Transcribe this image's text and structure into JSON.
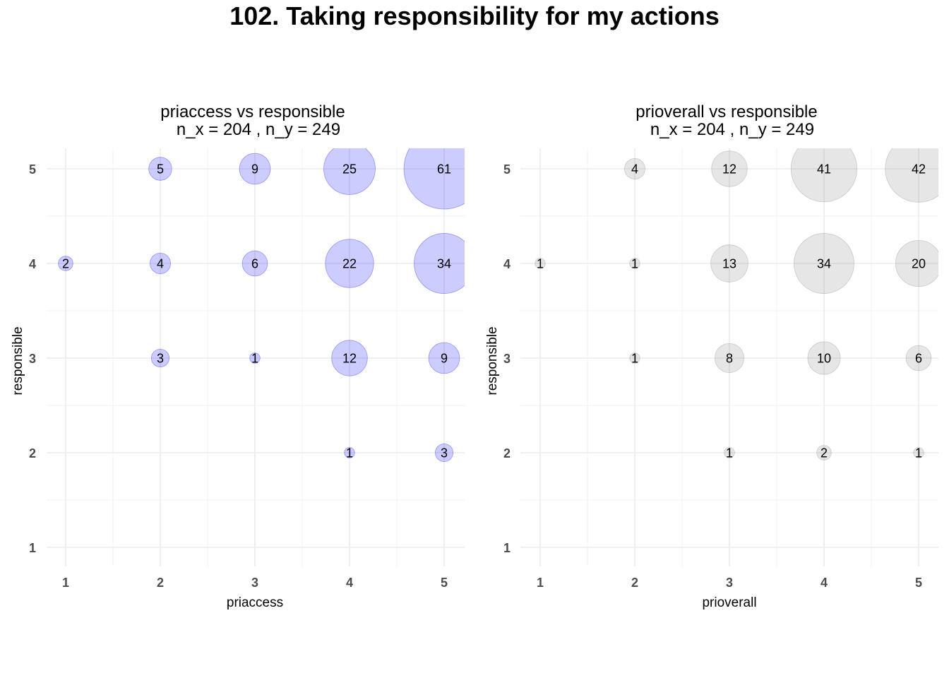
{
  "title": "102. Taking responsibility for my actions",
  "chart_data": [
    {
      "type": "scatter",
      "title": "priaccess vs responsible",
      "subtitle": "n_x = 204 , n_y = 249",
      "xlabel": "priaccess",
      "ylabel": "responsible",
      "x_ticks": [
        "1",
        "2",
        "3",
        "4",
        "5"
      ],
      "y_ticks": [
        "1",
        "2",
        "3",
        "4",
        "5"
      ],
      "xlim": [
        0.8,
        5.2
      ],
      "ylim": [
        0.8,
        5.2
      ],
      "grid": true,
      "point_color": "#0000ff",
      "points": [
        {
          "x": 2,
          "y": 5,
          "count": 5
        },
        {
          "x": 3,
          "y": 5,
          "count": 9
        },
        {
          "x": 4,
          "y": 5,
          "count": 25
        },
        {
          "x": 5,
          "y": 5,
          "count": 61
        },
        {
          "x": 1,
          "y": 4,
          "count": 2
        },
        {
          "x": 2,
          "y": 4,
          "count": 4
        },
        {
          "x": 3,
          "y": 4,
          "count": 6
        },
        {
          "x": 4,
          "y": 4,
          "count": 22
        },
        {
          "x": 5,
          "y": 4,
          "count": 34
        },
        {
          "x": 2,
          "y": 3,
          "count": 3
        },
        {
          "x": 3,
          "y": 3,
          "count": 1
        },
        {
          "x": 4,
          "y": 3,
          "count": 12
        },
        {
          "x": 5,
          "y": 3,
          "count": 9
        },
        {
          "x": 4,
          "y": 2,
          "count": 1
        },
        {
          "x": 5,
          "y": 2,
          "count": 3
        }
      ]
    },
    {
      "type": "scatter",
      "title": "prioverall vs responsible",
      "subtitle": "n_x = 204 , n_y = 249",
      "xlabel": "prioverall",
      "ylabel": "responsible",
      "x_ticks": [
        "1",
        "2",
        "3",
        "4",
        "5"
      ],
      "y_ticks": [
        "1",
        "2",
        "3",
        "4",
        "5"
      ],
      "xlim": [
        0.8,
        5.2
      ],
      "ylim": [
        0.8,
        5.2
      ],
      "grid": true,
      "point_color": "#808080",
      "points": [
        {
          "x": 2,
          "y": 5,
          "count": 4
        },
        {
          "x": 3,
          "y": 5,
          "count": 12
        },
        {
          "x": 4,
          "y": 5,
          "count": 41
        },
        {
          "x": 5,
          "y": 5,
          "count": 42
        },
        {
          "x": 1,
          "y": 4,
          "count": 1
        },
        {
          "x": 2,
          "y": 4,
          "count": 1
        },
        {
          "x": 3,
          "y": 4,
          "count": 13
        },
        {
          "x": 4,
          "y": 4,
          "count": 34
        },
        {
          "x": 5,
          "y": 4,
          "count": 20
        },
        {
          "x": 2,
          "y": 3,
          "count": 1
        },
        {
          "x": 3,
          "y": 3,
          "count": 8
        },
        {
          "x": 4,
          "y": 3,
          "count": 10
        },
        {
          "x": 5,
          "y": 3,
          "count": 6
        },
        {
          "x": 3,
          "y": 2,
          "count": 1
        },
        {
          "x": 4,
          "y": 2,
          "count": 2
        },
        {
          "x": 5,
          "y": 2,
          "count": 1
        }
      ]
    }
  ]
}
